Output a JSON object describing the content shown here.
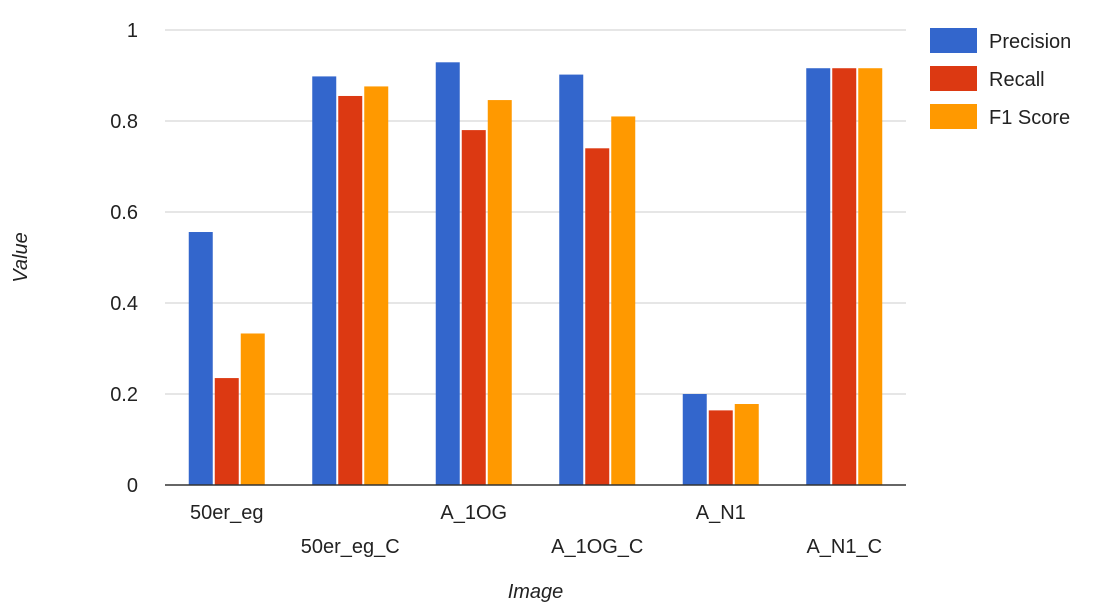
{
  "chart_data": {
    "type": "bar",
    "title": "",
    "xlabel": "Image",
    "ylabel": "Value",
    "ylim": [
      0,
      1
    ],
    "yticks": [
      "0",
      "0.2",
      "0.4",
      "0.6",
      "0.8",
      "1"
    ],
    "grid": true,
    "legend_position": "right",
    "categories": [
      "50er_eg",
      "50er_eg_C",
      "A_1OG",
      "A_1OG_C",
      "A_N1",
      "A_N1_C"
    ],
    "series": [
      {
        "name": "Precision",
        "color": "#3366cc",
        "values": [
          0.556,
          0.898,
          0.929,
          0.902,
          0.2,
          0.916
        ]
      },
      {
        "name": "Recall",
        "color": "#dc3912",
        "values": [
          0.235,
          0.855,
          0.78,
          0.74,
          0.164,
          0.916
        ]
      },
      {
        "name": "F1 Score",
        "color": "#ff9900",
        "values": [
          0.333,
          0.876,
          0.846,
          0.81,
          0.178,
          0.916
        ]
      }
    ]
  }
}
